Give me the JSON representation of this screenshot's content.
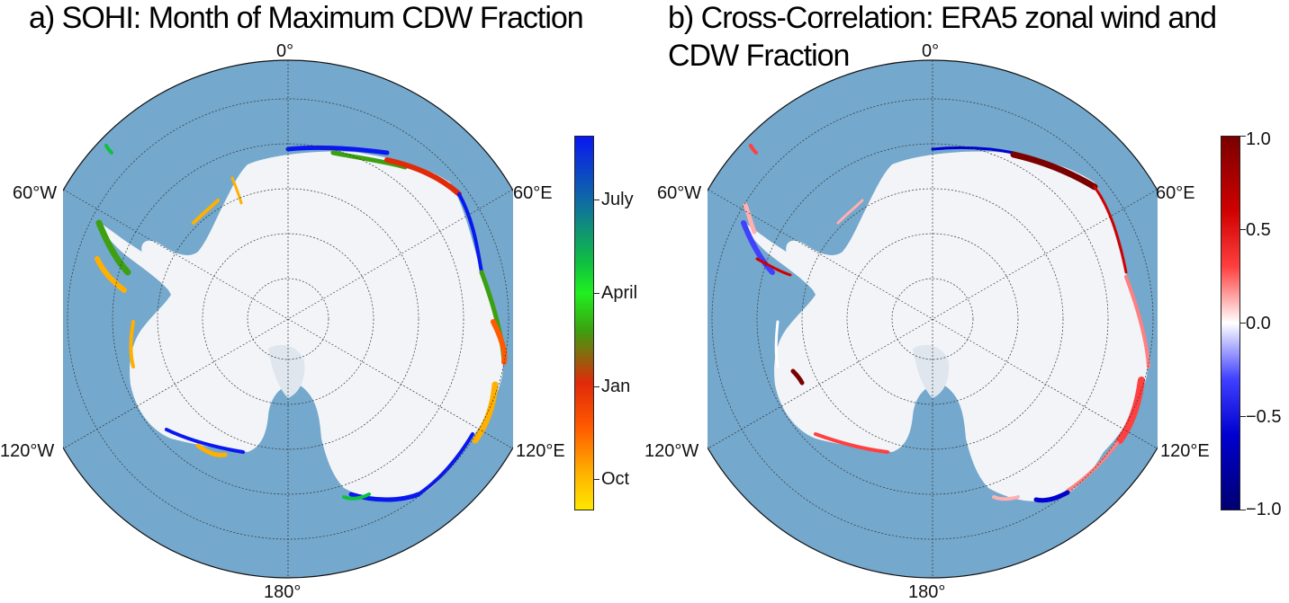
{
  "panel_a": {
    "title": "a) SOHI: Month of Maximum CDW Fraction",
    "lon_labels": {
      "top": "0°",
      "left": "60°W",
      "right": "60°E",
      "lower_left": "120°W",
      "lower_right": "120°E",
      "bottom": "180°"
    },
    "colorbar": {
      "ticks": [
        "July",
        "April",
        "Jan",
        "Oct"
      ],
      "colors_top_to_bottom": [
        "#0a18f0",
        "#0f6fa0",
        "#10c040",
        "#20f020",
        "#3ca010",
        "#e02a0a",
        "#ff5a00",
        "#ffb000",
        "#ffe800"
      ]
    }
  },
  "panel_b": {
    "title_line1": "b) Cross-Correlation: ERA5 zonal wind and",
    "title_line2": "CDW Fraction",
    "lon_labels": {
      "top": "0°",
      "left": "60°W",
      "right": "60°E",
      "lower_left": "120°W",
      "lower_right": "120°E",
      "bottom": "180°"
    },
    "colorbar": {
      "ticks": [
        "1.0",
        "0.5",
        "0.0",
        "−0.5",
        "−1.0"
      ],
      "range": [
        -1.0,
        1.0
      ],
      "colors_top_to_bottom": [
        "#7a0000",
        "#d00000",
        "#ff4040",
        "#ffffff",
        "#4040ff",
        "#0000d0",
        "#000070"
      ]
    }
  },
  "map_colors": {
    "ocean": "#74a8cc",
    "ice": "#f2f4f8",
    "grid": "#333333"
  }
}
